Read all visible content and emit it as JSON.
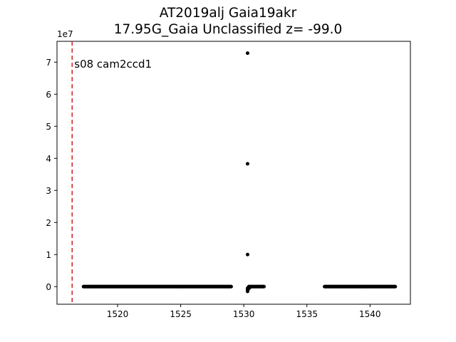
{
  "chart_data": {
    "type": "scatter",
    "title_line1": "AT2019alj  Gaia19akr",
    "title_line2": "17.95G_Gaia Unclassified z= -99.0",
    "xlabel": "",
    "ylabel": "",
    "y_offset_label": "1e7",
    "xlim": [
      1515.2,
      1543.2
    ],
    "ylim": [
      -0.55,
      7.65
    ],
    "y_scale_factor": 10000000,
    "x_ticks": [
      1520,
      1525,
      1530,
      1535,
      1540
    ],
    "x_tick_labels": [
      "1520",
      "1525",
      "1530",
      "1535",
      "1540"
    ],
    "y_ticks": [
      0,
      1,
      2,
      3,
      4,
      5,
      6,
      7
    ],
    "y_tick_labels": [
      "0",
      "1",
      "2",
      "3",
      "4",
      "5",
      "6",
      "7"
    ],
    "grid": false,
    "vline": {
      "x": 1516.4,
      "color": "#d62728",
      "style": "dashed"
    },
    "annotation": "s08 cam2ccd1",
    "marker_color": "#000000",
    "segments": [
      {
        "x_start": 1517.3,
        "x_end": 1529.0,
        "y": 0.0
      },
      {
        "x_start": 1530.4,
        "x_end": 1531.6,
        "y": 0.0
      },
      {
        "x_start": 1536.4,
        "x_end": 1542.0,
        "y": 0.0
      }
    ],
    "points": [
      {
        "x": 1530.3,
        "y": 7.28
      },
      {
        "x": 1530.3,
        "y": 3.83
      },
      {
        "x": 1530.3,
        "y": 1.0
      },
      {
        "x": 1530.3,
        "y": -0.05
      },
      {
        "x": 1530.3,
        "y": -0.1
      },
      {
        "x": 1530.3,
        "y": -0.15
      },
      {
        "x": 1530.35,
        "y": -0.03
      },
      {
        "x": 1530.4,
        "y": -0.06
      },
      {
        "x": 1530.5,
        "y": -0.02
      }
    ]
  }
}
